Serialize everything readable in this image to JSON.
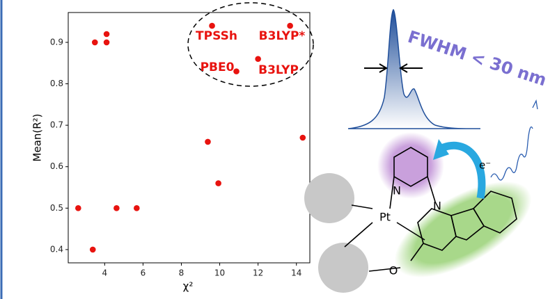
{
  "chart_data": {
    "type": "scatter",
    "x_label": "χ²",
    "y_label": "Mean(R²)",
    "x": [
      2.62,
      3.38,
      3.49,
      4.1,
      4.1,
      4.62,
      5.67,
      9.38,
      9.6,
      9.93,
      10.87,
      12.0,
      13.67,
      14.33
    ],
    "values": [
      0.5,
      0.4,
      0.9,
      0.92,
      0.9,
      0.5,
      0.5,
      0.66,
      0.94,
      0.56,
      0.83,
      0.86,
      0.94,
      0.67
    ],
    "color": "#e8130f",
    "xlim": [
      2.1,
      14.7
    ],
    "xticks": [
      4,
      6,
      8,
      10,
      12,
      14
    ],
    "ylim": [
      0.368,
      0.972
    ],
    "yticks": [
      0.4,
      0.5,
      0.6,
      0.7,
      0.8,
      0.9
    ],
    "annotations": [
      "TPSSh",
      "B3LYP*",
      "PBE0",
      "B3LYP"
    ]
  },
  "graphic_labels": {
    "fwhm": "FWHM < 30 nm",
    "electron": "e⁻",
    "n_pyridine": "N",
    "n_carbazole": "N",
    "metal": "Pt",
    "oxygen": "O"
  }
}
